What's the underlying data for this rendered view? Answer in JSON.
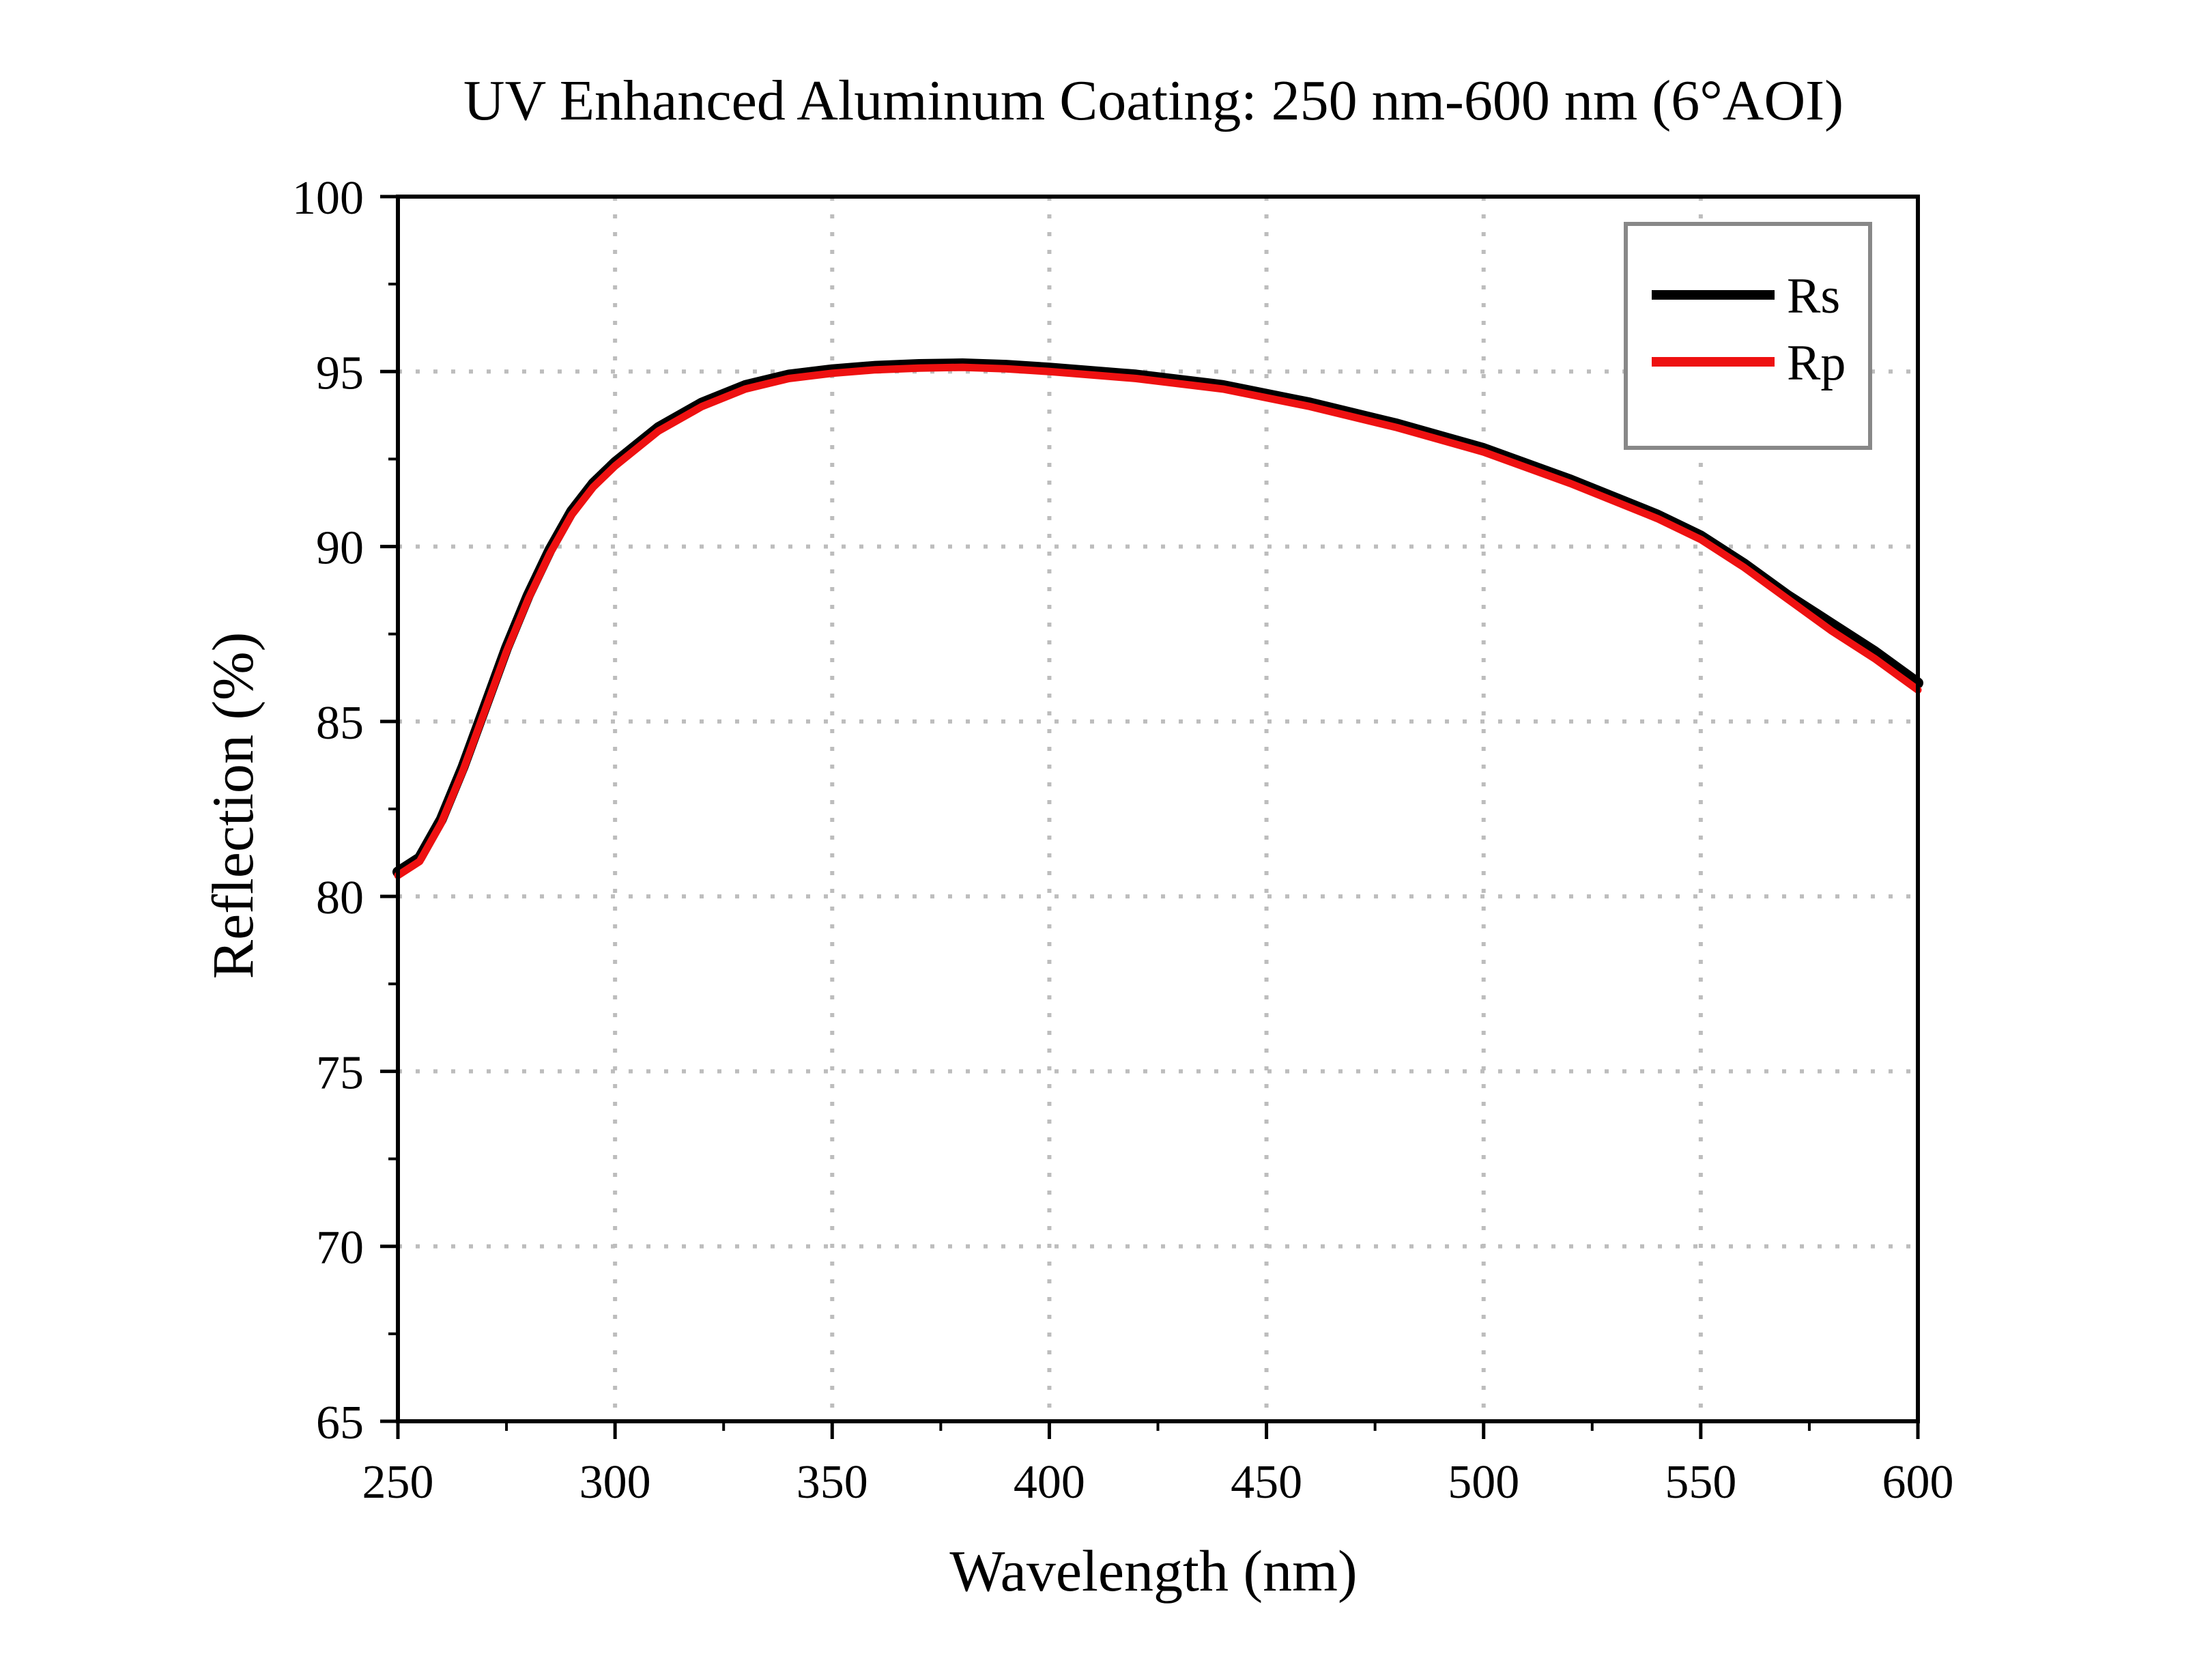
{
  "chart_data": {
    "type": "line",
    "title": "UV Enhanced Aluminum Coating: 250 nm-600 nm (6°AOI)",
    "xlabel": "Wavelength (nm)",
    "ylabel": "Reflection (%)",
    "xlim": [
      250,
      600
    ],
    "ylim": [
      65,
      100
    ],
    "xticks": [
      250,
      300,
      350,
      400,
      450,
      500,
      550,
      600
    ],
    "yticks": [
      65,
      70,
      75,
      80,
      85,
      90,
      95,
      100
    ],
    "grid": true,
    "legend": "top-right",
    "series": [
      {
        "name": "Rs",
        "color": "#000000",
        "x": [
          250,
          255,
          260,
          265,
          270,
          275,
          280,
          285,
          290,
          295,
          300,
          310,
          320,
          330,
          340,
          350,
          360,
          370,
          380,
          390,
          400,
          420,
          440,
          460,
          480,
          500,
          520,
          540,
          550,
          560,
          570,
          580,
          590,
          600
        ],
        "y": [
          80.7,
          81.1,
          82.2,
          83.7,
          85.4,
          87.1,
          88.6,
          89.9,
          91.0,
          91.8,
          92.4,
          93.4,
          94.1,
          94.6,
          94.9,
          95.05,
          95.15,
          95.2,
          95.22,
          95.18,
          95.1,
          94.9,
          94.6,
          94.1,
          93.5,
          92.8,
          91.9,
          90.9,
          90.3,
          89.5,
          88.6,
          87.8,
          87.0,
          86.1
        ]
      },
      {
        "name": "Rp",
        "color": "#ee1111",
        "x": [
          250,
          255,
          260,
          265,
          270,
          275,
          280,
          285,
          290,
          295,
          300,
          310,
          320,
          330,
          340,
          350,
          360,
          370,
          380,
          390,
          400,
          420,
          440,
          460,
          480,
          500,
          520,
          540,
          550,
          560,
          570,
          580,
          590,
          600
        ],
        "y": [
          80.6,
          81.0,
          82.1,
          83.6,
          85.3,
          87.0,
          88.5,
          89.8,
          90.9,
          91.7,
          92.3,
          93.3,
          94.0,
          94.5,
          94.8,
          94.95,
          95.05,
          95.1,
          95.12,
          95.08,
          95.0,
          94.8,
          94.5,
          94.0,
          93.4,
          92.7,
          91.8,
          90.8,
          90.2,
          89.4,
          88.5,
          87.6,
          86.8,
          85.9
        ]
      }
    ]
  }
}
